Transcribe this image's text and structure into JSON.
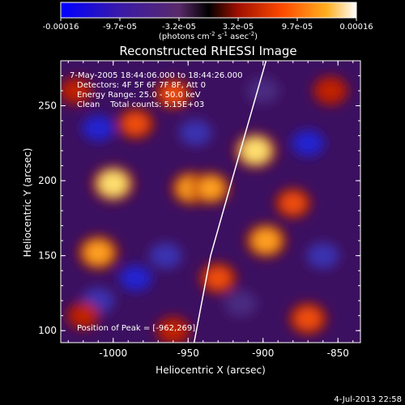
{
  "colorbar": {
    "ticks": [
      "-0.00016",
      "-9.7e-05",
      "-3.2e-05",
      "3.2e-05",
      "9.7e-05",
      "0.00016"
    ],
    "units": "(photons cm",
    "units_exp1": "-2",
    "units_mid": " s",
    "units_exp2": "-1",
    "units_mid2": " asec",
    "units_exp3": "-2",
    "units_end": ")"
  },
  "chart_data": {
    "type": "heatmap",
    "title": "Reconstructed RHESSI Image",
    "xlabel": "Heliocentric X (arcsec)",
    "ylabel": "Heliocentric Y (arcsec)",
    "xlim": [
      -1035,
      -835
    ],
    "ylim": [
      92,
      280
    ],
    "xticks": [
      "-1000",
      "-950",
      "-900",
      "-850"
    ],
    "xtick_values": [
      -1000,
      -950,
      -900,
      -850
    ],
    "yticks": [
      "100",
      "150",
      "200",
      "250"
    ],
    "ytick_values": [
      100,
      150,
      200,
      250
    ],
    "colorbar_range": [
      -0.00016,
      0.00016
    ],
    "limb_curve": {
      "points": [
        [
          -946,
          92
        ],
        [
          -935,
          150
        ],
        [
          -918,
          210
        ],
        [
          -898,
          280
        ]
      ]
    },
    "hot_spots": [
      {
        "x": -1000,
        "y": 198,
        "v": 1.0
      },
      {
        "x": -905,
        "y": 220,
        "v": 1.0
      },
      {
        "x": -948,
        "y": 195,
        "v": 0.85
      },
      {
        "x": -935,
        "y": 195,
        "v": 0.8
      },
      {
        "x": -898,
        "y": 160,
        "v": 0.9
      },
      {
        "x": -1010,
        "y": 152,
        "v": 0.9
      },
      {
        "x": -870,
        "y": 108,
        "v": 0.75
      },
      {
        "x": -985,
        "y": 238,
        "v": 0.7
      },
      {
        "x": -960,
        "y": 258,
        "v": 0.65
      },
      {
        "x": -855,
        "y": 260,
        "v": 0.6
      },
      {
        "x": -930,
        "y": 135,
        "v": 0.7
      },
      {
        "x": -880,
        "y": 185,
        "v": 0.65
      },
      {
        "x": -1025,
        "y": 260,
        "v": 0.5
      },
      {
        "x": -1020,
        "y": 110,
        "v": 0.5
      },
      {
        "x": -960,
        "y": 100,
        "v": 0.55
      }
    ],
    "cold_spots": [
      {
        "x": -1010,
        "y": 235,
        "v": -0.9
      },
      {
        "x": -870,
        "y": 225,
        "v": -0.8
      },
      {
        "x": -965,
        "y": 150,
        "v": -0.7
      },
      {
        "x": -985,
        "y": 135,
        "v": -0.8
      },
      {
        "x": -1010,
        "y": 120,
        "v": -0.7
      },
      {
        "x": -860,
        "y": 150,
        "v": -0.6
      },
      {
        "x": -900,
        "y": 260,
        "v": -0.5
      },
      {
        "x": -945,
        "y": 232,
        "v": -0.6
      },
      {
        "x": -915,
        "y": 118,
        "v": -0.5
      }
    ]
  },
  "annotations": {
    "line1": "7-May-2005 18:44:06.000 to 18:44:26.000",
    "line2": "Detectors: 4F 5F 6F 7F 8F, Att 0",
    "line3": "Energy Range: 25.0 - 50.0 keV",
    "line4": "Clean    Total counts: 5.15E+03",
    "peak": "Position of Peak = [-962,269]"
  },
  "footer": {
    "timestamp": "4-Jul-2013 22:58"
  }
}
